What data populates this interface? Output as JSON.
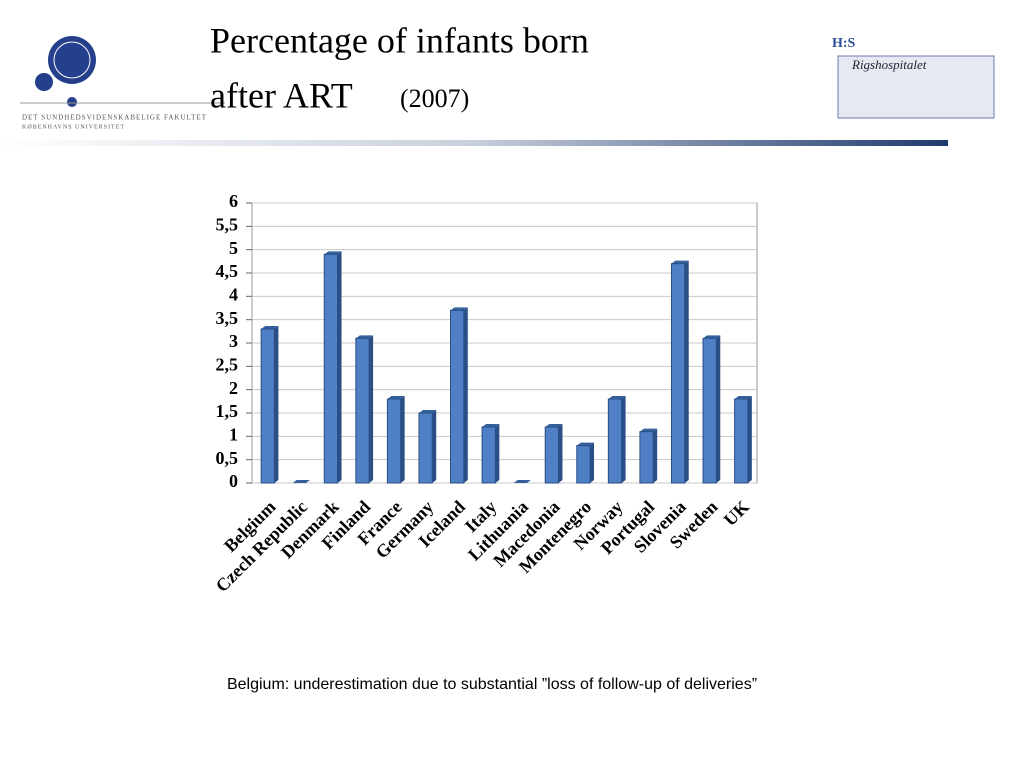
{
  "chart_data": {
    "type": "bar",
    "title": "Percentage of infants born",
    "title_line2": "after ART",
    "subtitle": "(2007)",
    "footnote": "Belgium: underestimation due to substantial ”loss of follow-up of deliveries”",
    "categories": [
      "Belgium",
      "Czech Republic",
      "Denmark",
      "Finland",
      "France",
      "Germany",
      "Iceland",
      "Italy",
      "Lithuania",
      "Macedonia",
      "Montenegro",
      "Norway",
      "Portugal",
      "Slovenia",
      "Sweden",
      "UK"
    ],
    "values": [
      3.3,
      0,
      4.9,
      3.1,
      1.8,
      1.5,
      3.7,
      1.2,
      0,
      1.2,
      0.8,
      1.8,
      1.1,
      4.7,
      3.1,
      1.8
    ],
    "color": "#4f7fc4",
    "ylim": [
      0,
      6
    ],
    "yticks": [
      0,
      {
        "value": 0.5,
        "label": "0,5"
      },
      1,
      {
        "value": 1.5,
        "label": "1,5"
      },
      2,
      {
        "value": 2.5,
        "label": "2,5"
      },
      3,
      {
        "value": 3.5,
        "label": "3,5"
      },
      4,
      {
        "value": 4.5,
        "label": "4,5"
      },
      5,
      {
        "value": 5.5,
        "label": "5,5"
      },
      6
    ],
    "grid": true
  },
  "logos": {
    "left_line1": "DET SUNDHEDSVIDENSKABELIGE FAKULTET",
    "left_line2": "KØBENHAVNS UNIVERSITET",
    "right_mark": "H:S",
    "right_name": "Rigshospitalet"
  }
}
